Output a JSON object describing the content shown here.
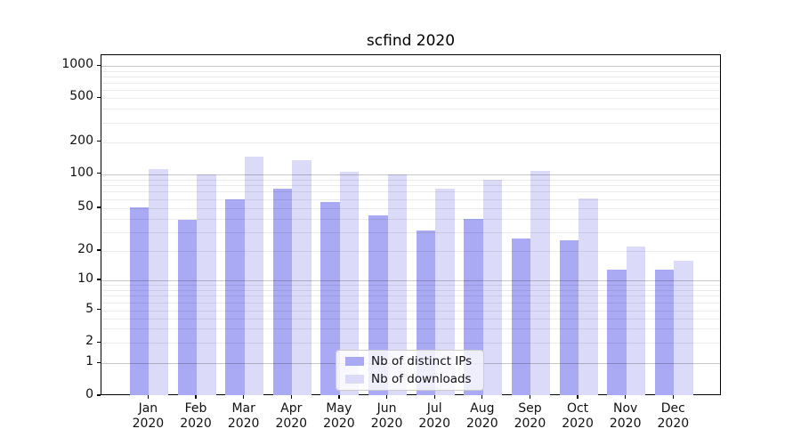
{
  "title": "scfind 2020",
  "legend": {
    "items": [
      {
        "label": "Nb of distinct IPs",
        "color": "#a9a9f4"
      },
      {
        "label": "Nb of downloads",
        "color": "#dbdbf9"
      }
    ]
  },
  "y_axis": {
    "tick_labels": [
      "1000",
      "500",
      "200",
      "100",
      "50",
      "20",
      "10",
      "5",
      "2",
      "1",
      "0"
    ],
    "tick_values": [
      1000,
      500,
      200,
      100,
      50,
      20,
      10,
      5,
      2,
      1,
      0
    ]
  },
  "x_axis": {
    "months": [
      "Jan",
      "Feb",
      "Mar",
      "Apr",
      "May",
      "Jun",
      "Jul",
      "Aug",
      "Sep",
      "Oct",
      "Nov",
      "Dec"
    ],
    "year": "2020"
  },
  "chart_data": {
    "type": "bar",
    "title": "scfind 2020",
    "categories": [
      "Jan 2020",
      "Feb 2020",
      "Mar 2020",
      "Apr 2020",
      "May 2020",
      "Jun 2020",
      "Jul 2020",
      "Aug 2020",
      "Sep 2020",
      "Oct 2020",
      "Nov 2020",
      "Dec 2020"
    ],
    "series": [
      {
        "name": "Nb of distinct IPs",
        "color": "#a9a9f4",
        "values": [
          51,
          39,
          60,
          75,
          57,
          43,
          31,
          40,
          26,
          25,
          13,
          13
        ]
      },
      {
        "name": "Nb of downloads",
        "color": "#dbdbf9",
        "values": [
          112,
          100,
          147,
          135,
          105,
          100,
          75,
          89,
          108,
          61,
          22,
          16
        ]
      }
    ],
    "xlabel": "",
    "ylabel": "",
    "yscale": "symlog",
    "ylim": [
      0,
      1300
    ],
    "y_major_grid_values": [
      1,
      10,
      100,
      1000
    ],
    "y_minor_grid_values": [
      2,
      3,
      4,
      5,
      6,
      7,
      8,
      9,
      20,
      30,
      40,
      50,
      60,
      70,
      80,
      90,
      200,
      300,
      400,
      500,
      600,
      700,
      800,
      900
    ],
    "grid": true,
    "legend_position": "lower center"
  }
}
